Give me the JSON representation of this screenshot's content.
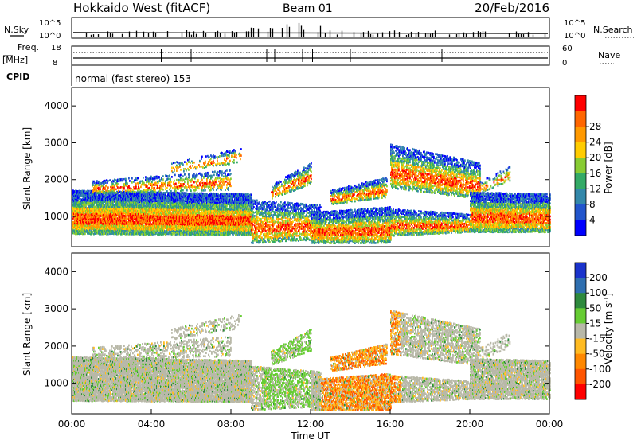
{
  "header": {
    "title": "Hokkaido West (fitACF)",
    "beam": "Beam 01",
    "date": "20/Feb/2016"
  },
  "noise_panel": {
    "left_label_top": "N.Sky",
    "right_label_top": "N.Search",
    "ticks": [
      "10^5",
      "10^0"
    ]
  },
  "freq_panel": {
    "left_label_top": "Freq.",
    "left_label_unit": "[MHz]",
    "right_label": "Nave",
    "left_ticks": [
      "18",
      "8"
    ],
    "right_ticks": [
      "60",
      "0"
    ]
  },
  "cpid_panel": {
    "label": "CPID",
    "text": "normal (fast stereo) 153"
  },
  "time_axis": {
    "label": "Time UT",
    "ticks": [
      "00:00",
      "04:00",
      "08:00",
      "12:00",
      "16:00",
      "20:00",
      "00:00"
    ]
  },
  "chart_data": [
    {
      "type": "heatmap",
      "name": "power",
      "ylabel": "Slant Range [km]",
      "ylim": [
        180,
        4500
      ],
      "yticks": [
        1000,
        2000,
        3000,
        4000
      ],
      "xlim": [
        0,
        24
      ],
      "colorbar": {
        "label": "Power [dB]",
        "ticks": [
          "4",
          "8",
          "12",
          "16",
          "20",
          "24",
          "28"
        ],
        "colors": [
          "#0000ff",
          "#2255cc",
          "#3388aa",
          "#33aa66",
          "#88cc33",
          "#ffcc00",
          "#ff9900",
          "#ff6600",
          "#ff0000"
        ]
      }
    },
    {
      "type": "heatmap",
      "name": "velocity",
      "ylabel": "Slant Range [km]",
      "ylim": [
        180,
        4500
      ],
      "yticks": [
        1000,
        2000,
        3000,
        4000
      ],
      "xlim": [
        0,
        24
      ],
      "colorbar": {
        "label": "Velocity [m s^-1]",
        "ticks": [
          "200",
          "100",
          "50",
          "15",
          "-15",
          "-50",
          "-100",
          "-200"
        ],
        "colors": [
          "#1a33cc",
          "#2f6fb0",
          "#2e8a3d",
          "#66cc33",
          "#b8b8a8",
          "#ffbb22",
          "#ff8800",
          "#ff5500",
          "#ff0000"
        ]
      }
    }
  ]
}
